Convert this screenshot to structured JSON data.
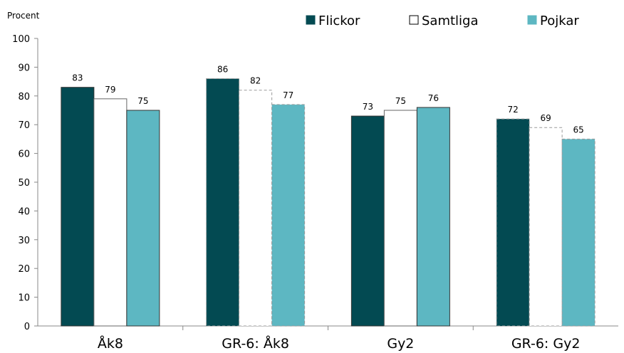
{
  "chart_data": {
    "type": "bar",
    "ylabel": "Procent",
    "ylim": [
      0,
      100
    ],
    "yticks": [
      0,
      10,
      20,
      30,
      40,
      50,
      60,
      70,
      80,
      90,
      100
    ],
    "grid": false,
    "legend_position": "top-right",
    "categories": [
      "Åk8",
      "GR-6: Åk8",
      "Gy2",
      "GR-6: Gy2"
    ],
    "series": [
      {
        "name": "Flickor",
        "color": "#034a52",
        "values": [
          83,
          86,
          73,
          72
        ],
        "labels": [
          "83",
          "86",
          "73",
          "72"
        ]
      },
      {
        "name": "Samtliga",
        "color": "#ffffff",
        "values": [
          79,
          82,
          75,
          69
        ],
        "labels": [
          "79",
          "82",
          "75",
          "69"
        ]
      },
      {
        "name": "Pojkar",
        "color": "#5db7c2",
        "values": [
          75,
          77,
          76,
          65
        ],
        "labels": [
          "75",
          "77",
          "76",
          "65"
        ]
      }
    ],
    "dashed_outline_categories": [
      "GR-6: Åk8",
      "GR-6: Gy2"
    ]
  }
}
